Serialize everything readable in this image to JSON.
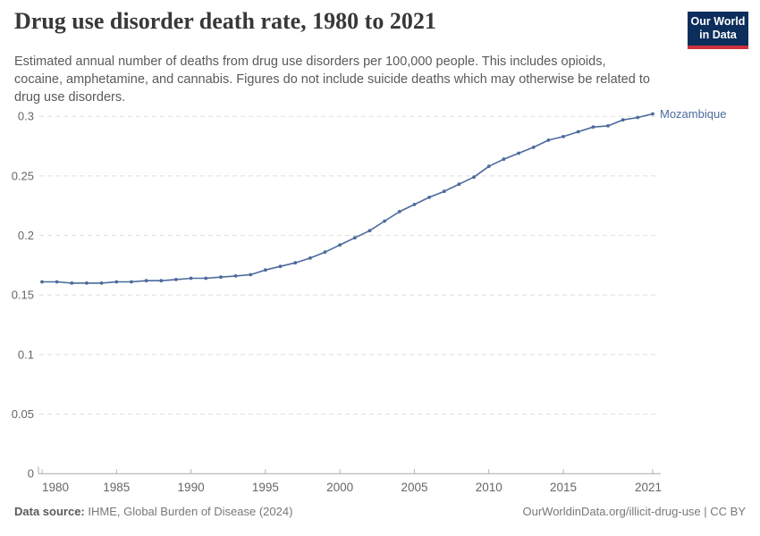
{
  "header": {
    "title": "Drug use disorder death rate, 1980 to 2021",
    "subtitle_lines": [
      "Estimated annual number of deaths from drug use disorders per 100,000 people. This includes opioids,",
      "cocaine, amphetamine, and cannabis. Figures do not include suicide deaths which may otherwise be related to",
      "drug use disorders."
    ],
    "logo_line1": "Our World",
    "logo_line2": "in Data",
    "logo_bg_color": "#0d2e5c",
    "logo_stripe_color": "#cd323c"
  },
  "chart_data": {
    "type": "line",
    "title": "Drug use disorder death rate, 1980 to 2021",
    "xlabel": "",
    "ylabel": "",
    "xlim": [
      1980,
      2021
    ],
    "ylim": [
      0,
      0.3
    ],
    "grid": "horizontal-dashed",
    "legend_position": "end-of-line-label",
    "xticks": [
      1980,
      1985,
      1990,
      1995,
      2000,
      2005,
      2010,
      2015,
      2021
    ],
    "yticks": [
      0,
      0.05,
      0.1,
      0.15,
      0.2,
      0.25,
      0.3
    ],
    "ytick_labels": [
      "0",
      "0.05",
      "0.1",
      "0.15",
      "0.2",
      "0.25",
      "0.3"
    ],
    "series": [
      {
        "name": "Mozambique",
        "color": "#4c6a9c",
        "x": [
          1980,
          1981,
          1982,
          1983,
          1984,
          1985,
          1986,
          1987,
          1988,
          1989,
          1990,
          1991,
          1992,
          1993,
          1994,
          1995,
          1996,
          1997,
          1998,
          1999,
          2000,
          2001,
          2002,
          2003,
          2004,
          2005,
          2006,
          2007,
          2008,
          2009,
          2010,
          2011,
          2012,
          2013,
          2014,
          2015,
          2016,
          2017,
          2018,
          2019,
          2020,
          2021
        ],
        "values": [
          0.161,
          0.161,
          0.16,
          0.16,
          0.16,
          0.161,
          0.161,
          0.162,
          0.162,
          0.163,
          0.164,
          0.164,
          0.165,
          0.166,
          0.167,
          0.171,
          0.174,
          0.177,
          0.181,
          0.186,
          0.192,
          0.198,
          0.204,
          0.212,
          0.22,
          0.226,
          0.232,
          0.237,
          0.243,
          0.249,
          0.258,
          0.264,
          0.269,
          0.274,
          0.28,
          0.283,
          0.287,
          0.291,
          0.292,
          0.297,
          0.299,
          0.302
        ]
      }
    ],
    "end_label": "Mozambique"
  },
  "footer": {
    "source_label": "Data source:",
    "source_text": "IHME, Global Burden of Disease (2024)",
    "credit": "OurWorldinData.org/illicit-drug-use | CC BY"
  },
  "colors": {
    "line": "#4c6a9c",
    "grid": "#dedede",
    "axis": "#a8a8a8",
    "tick": "#b5b5b5",
    "tick_label": "#666666",
    "title": "#383838",
    "subtitle": "#5a5a5a",
    "footer": "#787878"
  }
}
